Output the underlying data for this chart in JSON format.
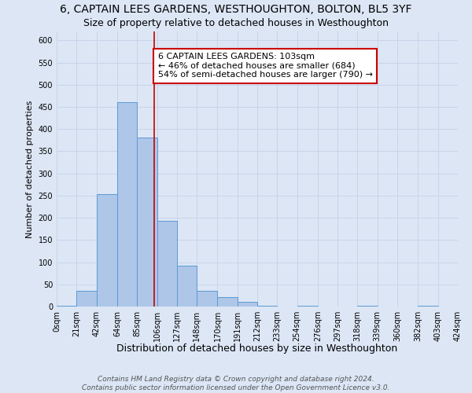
{
  "title": "6, CAPTAIN LEES GARDENS, WESTHOUGHTON, BOLTON, BL5 3YF",
  "subtitle": "Size of property relative to detached houses in Westhoughton",
  "xlabel": "Distribution of detached houses by size in Westhoughton",
  "ylabel": "Number of detached properties",
  "bar_edges": [
    0,
    21,
    42,
    64,
    85,
    106,
    127,
    148,
    170,
    191,
    212,
    233,
    254,
    276,
    297,
    318,
    339,
    360,
    382,
    403,
    424
  ],
  "bar_heights": [
    1,
    35,
    253,
    460,
    380,
    193,
    92,
    35,
    22,
    10,
    1,
    0,
    1,
    0,
    0,
    1,
    0,
    0,
    1,
    0
  ],
  "bar_color": "#aec6e8",
  "bar_edge_color": "#5b9bd5",
  "vline_x": 103,
  "vline_color": "#cc0000",
  "annotation_line1": "6 CAPTAIN LEES GARDENS: 103sqm",
  "annotation_line2": "← 46% of detached houses are smaller (684)",
  "annotation_line3": "54% of semi-detached houses are larger (790) →",
  "annotation_box_edge_color": "#cc0000",
  "annotation_box_face_color": "#ffffff",
  "ylim": [
    0,
    620
  ],
  "xlim": [
    0,
    424
  ],
  "yticks": [
    0,
    50,
    100,
    150,
    200,
    250,
    300,
    350,
    400,
    450,
    500,
    550,
    600
  ],
  "xtick_labels": [
    "0sqm",
    "21sqm",
    "42sqm",
    "64sqm",
    "85sqm",
    "106sqm",
    "127sqm",
    "148sqm",
    "170sqm",
    "191sqm",
    "212sqm",
    "233sqm",
    "254sqm",
    "276sqm",
    "297sqm",
    "318sqm",
    "339sqm",
    "360sqm",
    "382sqm",
    "403sqm",
    "424sqm"
  ],
  "xtick_positions": [
    0,
    21,
    42,
    64,
    85,
    106,
    127,
    148,
    170,
    191,
    212,
    233,
    254,
    276,
    297,
    318,
    339,
    360,
    382,
    403,
    424
  ],
  "grid_color": "#c8d4e8",
  "background_color": "#dce6f5",
  "plot_bg_color": "#dce6f5",
  "footer1": "Contains HM Land Registry data © Crown copyright and database right 2024.",
  "footer2": "Contains public sector information licensed under the Open Government Licence v3.0.",
  "title_fontsize": 10,
  "subtitle_fontsize": 9,
  "xlabel_fontsize": 9,
  "ylabel_fontsize": 8,
  "annotation_fontsize": 8,
  "footer_fontsize": 6.5,
  "tick_fontsize": 7
}
